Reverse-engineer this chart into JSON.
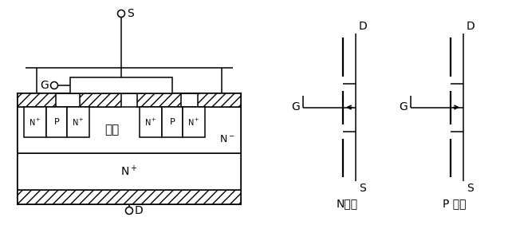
{
  "bg_color": "#ffffff",
  "line_color": "#000000",
  "label_S": "S",
  "label_G": "G",
  "label_D": "D",
  "label_N_minus": "N⁻",
  "label_N_plus": "N⁺",
  "label_channel": "沟道",
  "label_N_channel": "N沟道",
  "label_P_channel": "P 沟道"
}
